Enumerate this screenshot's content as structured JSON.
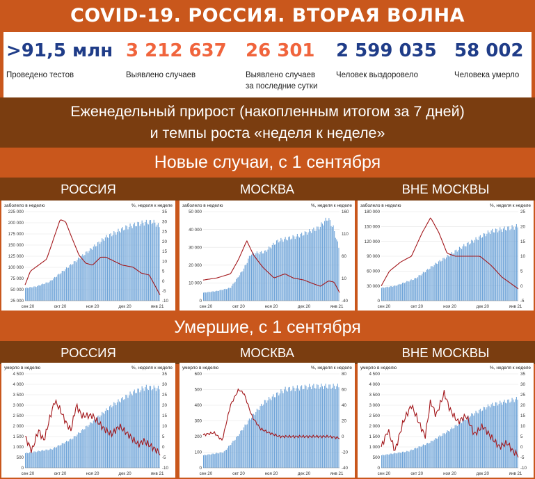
{
  "title": "COVID-19. РОССИЯ. ВТОРАЯ ВОЛНА",
  "stats": [
    {
      "value": ">91,5 млн",
      "label1": "Проведено тестов",
      "label2": "",
      "color": "#1f3c88"
    },
    {
      "value": "3 212 637",
      "label1": "Выявлено случаев",
      "label2": "",
      "color": "#f0643c"
    },
    {
      "value": "26 301",
      "label1": "Выявлено случаев",
      "label2": "за последние сутки",
      "color": "#f0643c"
    },
    {
      "value": "2 599 035",
      "label1": "Человек выздоровело",
      "label2": "",
      "color": "#1f3c88"
    },
    {
      "value": "58 002",
      "label1": "Человека умерло",
      "label2": "",
      "color": "#1f3c88"
    }
  ],
  "weekly_heading": {
    "line1": "Еженедельный прирост (накопленным итогом за 7 дней)",
    "line2": "и темпы роста «неделя к неделе»"
  },
  "cases_heading": "Новые случаи, с 1 сентября",
  "deaths_heading": "Умершие, с 1 сентября",
  "regions": [
    "РОССИЯ",
    "МОСКВА",
    "ВНЕ МОСКВЫ"
  ],
  "chart_labels": {
    "cases_left": "заболело в неделю",
    "deaths_left": "умерло в неделю",
    "right": "%, неделя к неделе",
    "months": [
      "сен 20",
      "окт 20",
      "ноя 20",
      "дек 20",
      "янв 21"
    ]
  },
  "colors": {
    "bars": "#6fa4d8",
    "line": "#a3171b"
  },
  "chart_data": [
    {
      "type": "bar+line",
      "region": "РОССИЯ",
      "metric": "Новые случаи",
      "left_ticks": [
        "225 000",
        "200 000",
        "175 000",
        "150 000",
        "125 000",
        "100 000",
        "75 000",
        "50 000",
        "25 000"
      ],
      "left_range": [
        0,
        225000
      ],
      "right_ticks": [
        "35",
        "30",
        "25",
        "20",
        "15",
        "10",
        "5",
        "0",
        "-5",
        "-10"
      ],
      "right_range": [
        -10,
        35
      ],
      "bars_knots": [
        [
          0,
          32000
        ],
        [
          8,
          36000
        ],
        [
          18,
          48000
        ],
        [
          30,
          80000
        ],
        [
          45,
          120000
        ],
        [
          60,
          160000
        ],
        [
          75,
          185000
        ],
        [
          85,
          195000
        ],
        [
          95,
          200000
        ],
        [
          100,
          188000
        ]
      ],
      "line_knots": [
        [
          0,
          -2
        ],
        [
          4,
          5
        ],
        [
          10,
          8
        ],
        [
          16,
          11
        ],
        [
          21,
          21
        ],
        [
          26,
          31
        ],
        [
          30,
          30
        ],
        [
          34,
          23
        ],
        [
          40,
          13
        ],
        [
          45,
          9
        ],
        [
          50,
          8
        ],
        [
          56,
          12
        ],
        [
          60,
          12
        ],
        [
          66,
          10
        ],
        [
          72,
          8
        ],
        [
          80,
          7
        ],
        [
          86,
          4
        ],
        [
          92,
          3
        ],
        [
          96,
          -2
        ],
        [
          100,
          -7
        ]
      ]
    },
    {
      "type": "bar+line",
      "region": "МОСКВА",
      "metric": "Новые случаи",
      "left_ticks": [
        "50 000",
        "40 000",
        "30 000",
        "20 000",
        "10 000",
        "0"
      ],
      "left_range": [
        0,
        55000
      ],
      "right_ticks": [
        "160",
        "110",
        "60",
        "10",
        "-40"
      ],
      "right_range": [
        -40,
        175
      ],
      "bars_knots": [
        [
          0,
          5000
        ],
        [
          10,
          6000
        ],
        [
          20,
          8000
        ],
        [
          30,
          20000
        ],
        [
          35,
          29000
        ],
        [
          45,
          30000
        ],
        [
          55,
          37000
        ],
        [
          70,
          40000
        ],
        [
          85,
          45000
        ],
        [
          92,
          51000
        ],
        [
          96,
          45000
        ],
        [
          100,
          33000
        ]
      ],
      "line_knots": [
        [
          0,
          10
        ],
        [
          10,
          15
        ],
        [
          20,
          25
        ],
        [
          26,
          60
        ],
        [
          32,
          105
        ],
        [
          37,
          70
        ],
        [
          44,
          40
        ],
        [
          52,
          15
        ],
        [
          60,
          25
        ],
        [
          66,
          15
        ],
        [
          74,
          10
        ],
        [
          80,
          2
        ],
        [
          86,
          -5
        ],
        [
          92,
          8
        ],
        [
          96,
          5
        ],
        [
          100,
          -20
        ]
      ]
    },
    {
      "type": "bar+line",
      "region": "ВНЕ МОСКВЫ",
      "metric": "Новые случаи",
      "left_ticks": [
        "180 000",
        "150 000",
        "120 000",
        "90 000",
        "60 000",
        "30 000",
        "0"
      ],
      "left_range": [
        0,
        180000
      ],
      "right_ticks": [
        "25",
        "20",
        "15",
        "10",
        "5",
        "0",
        "-5"
      ],
      "right_range": [
        -5,
        25
      ],
      "bars_knots": [
        [
          0,
          26000
        ],
        [
          10,
          30000
        ],
        [
          25,
          45000
        ],
        [
          40,
          75000
        ],
        [
          60,
          110000
        ],
        [
          80,
          140000
        ],
        [
          100,
          150000
        ]
      ],
      "line_knots": [
        [
          0,
          0
        ],
        [
          6,
          5
        ],
        [
          14,
          8
        ],
        [
          22,
          10
        ],
        [
          30,
          18
        ],
        [
          36,
          23
        ],
        [
          42,
          18
        ],
        [
          48,
          11
        ],
        [
          54,
          10
        ],
        [
          62,
          10
        ],
        [
          72,
          10
        ],
        [
          80,
          7
        ],
        [
          88,
          3
        ],
        [
          94,
          1
        ],
        [
          100,
          -1
        ]
      ]
    },
    {
      "type": "bar+line",
      "region": "РОССИЯ",
      "metric": "Умершие",
      "left_ticks": [
        "4 500",
        "4 000",
        "3 500",
        "3 000",
        "2 500",
        "2 000",
        "1 500",
        "1 000",
        "500",
        "0"
      ],
      "left_range": [
        0,
        4500
      ],
      "right_ticks": [
        "35",
        "30",
        "25",
        "20",
        "15",
        "10",
        "5",
        "0",
        "-5",
        "-10"
      ],
      "right_range": [
        -10,
        35
      ],
      "bars_knots": [
        [
          0,
          700
        ],
        [
          20,
          900
        ],
        [
          35,
          1400
        ],
        [
          50,
          2200
        ],
        [
          65,
          3000
        ],
        [
          80,
          3600
        ],
        [
          90,
          3850
        ],
        [
          100,
          3800
        ]
      ],
      "line_knots": [
        [
          0,
          5
        ],
        [
          5,
          -2
        ],
        [
          10,
          8
        ],
        [
          14,
          3
        ],
        [
          18,
          13
        ],
        [
          22,
          22
        ],
        [
          26,
          18
        ],
        [
          30,
          12
        ],
        [
          34,
          8
        ],
        [
          38,
          20
        ],
        [
          42,
          15
        ],
        [
          50,
          15
        ],
        [
          58,
          9
        ],
        [
          64,
          6
        ],
        [
          70,
          10
        ],
        [
          78,
          5
        ],
        [
          84,
          1
        ],
        [
          88,
          3
        ],
        [
          94,
          0
        ],
        [
          100,
          -3
        ]
      ]
    },
    {
      "type": "bar+line",
      "region": "МОСКВА",
      "metric": "Умершие",
      "left_ticks": [
        "600",
        "500",
        "400",
        "300",
        "200",
        "100",
        "0"
      ],
      "left_range": [
        0,
        600
      ],
      "right_ticks": [
        "80",
        "60",
        "40",
        "20",
        "0",
        "-20",
        "-40"
      ],
      "right_range": [
        -40,
        80
      ],
      "bars_knots": [
        [
          0,
          80
        ],
        [
          15,
          100
        ],
        [
          25,
          200
        ],
        [
          35,
          320
        ],
        [
          45,
          420
        ],
        [
          60,
          500
        ],
        [
          80,
          520
        ],
        [
          100,
          520
        ]
      ],
      "line_knots": [
        [
          0,
          2
        ],
        [
          8,
          5
        ],
        [
          14,
          -5
        ],
        [
          20,
          40
        ],
        [
          26,
          60
        ],
        [
          30,
          55
        ],
        [
          36,
          25
        ],
        [
          42,
          10
        ],
        [
          48,
          5
        ],
        [
          56,
          0
        ],
        [
          64,
          0
        ],
        [
          74,
          0
        ],
        [
          84,
          0
        ],
        [
          92,
          0
        ],
        [
          100,
          -2
        ]
      ]
    },
    {
      "type": "bar+line",
      "region": "ВНЕ МОСКВЫ",
      "metric": "Умершие",
      "left_ticks": [
        "4 500",
        "4 000",
        "3 500",
        "3 000",
        "2 500",
        "2 000",
        "1 500",
        "1 000",
        "500",
        "0"
      ],
      "left_range": [
        0,
        4500
      ],
      "right_ticks": [
        "35",
        "30",
        "25",
        "20",
        "15",
        "10",
        "5",
        "0",
        "-5",
        "-10"
      ],
      "right_range": [
        -10,
        35
      ],
      "bars_knots": [
        [
          0,
          600
        ],
        [
          20,
          800
        ],
        [
          35,
          1200
        ],
        [
          50,
          1800
        ],
        [
          65,
          2500
        ],
        [
          80,
          3000
        ],
        [
          100,
          3300
        ]
      ],
      "line_knots": [
        [
          0,
          0
        ],
        [
          5,
          8
        ],
        [
          10,
          -2
        ],
        [
          16,
          12
        ],
        [
          22,
          20
        ],
        [
          26,
          14
        ],
        [
          32,
          5
        ],
        [
          36,
          22
        ],
        [
          40,
          15
        ],
        [
          46,
          26
        ],
        [
          50,
          18
        ],
        [
          56,
          12
        ],
        [
          62,
          15
        ],
        [
          68,
          6
        ],
        [
          74,
          10
        ],
        [
          80,
          5
        ],
        [
          86,
          0
        ],
        [
          92,
          2
        ],
        [
          96,
          -2
        ],
        [
          100,
          -4
        ]
      ]
    }
  ]
}
